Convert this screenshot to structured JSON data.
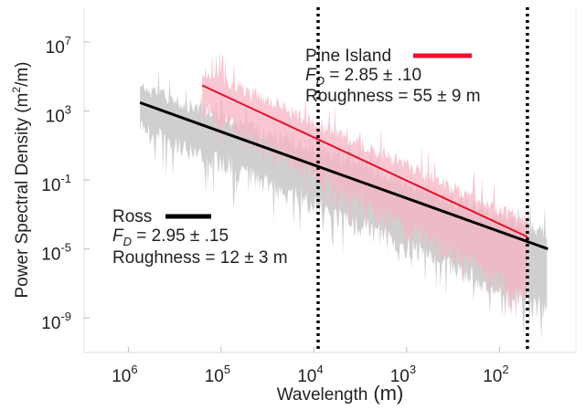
{
  "chart_data": {
    "type": "line",
    "xlabel_main": "Wavelength",
    "xlabel_unit": "(m)",
    "ylabel": "Power Spectral Density (m",
    "ylabel_sup": "2",
    "ylabel_tail": "/m)",
    "x_scale": "log",
    "x_reversed": true,
    "y_scale": "log",
    "xlim": [
      3000000,
      15
    ],
    "ylim": [
      1e-11,
      1000000000.0
    ],
    "x_ticks": [
      {
        "value": 1000000,
        "base": "10",
        "exp": "6"
      },
      {
        "value": 100000,
        "base": "10",
        "exp": "5"
      },
      {
        "value": 10000,
        "base": "10",
        "exp": "4"
      },
      {
        "value": 1000,
        "base": "10",
        "exp": "3"
      },
      {
        "value": 100,
        "base": "10",
        "exp": "2"
      }
    ],
    "y_ticks": [
      {
        "value": 10000000.0,
        "base": "10",
        "exp": "7"
      },
      {
        "value": 1000.0,
        "base": "10",
        "exp": "3"
      },
      {
        "value": 0.1,
        "base": "10",
        "exp": "-1"
      },
      {
        "value": 1e-05,
        "base": "10",
        "exp": "-5"
      },
      {
        "value": 1e-09,
        "base": "10",
        "exp": "-9"
      }
    ],
    "grid": false,
    "reference_lines": [
      {
        "x": 9000,
        "style": "dotted",
        "color": "#000000"
      },
      {
        "x": 50,
        "style": "dotted",
        "color": "#000000"
      }
    ],
    "series": [
      {
        "name": "Ross",
        "color": "#000000",
        "noise_color": "#cfcfcf",
        "fit": {
          "x": [
            750000,
            30
          ],
          "y": [
            3000,
            1e-05
          ]
        },
        "noise_x_range": [
          750000,
          30
        ],
        "FD": "2.95 ± .15",
        "roughness": "Roughness = 12 ± 3 m"
      },
      {
        "name": "Pine Island",
        "color": "#e8102c",
        "noise_color": "#f7b4c2",
        "fit": {
          "x": [
            160000,
            50
          ],
          "y": [
            30000,
            5e-05
          ]
        },
        "noise_x_range": [
          160000,
          50
        ],
        "FD": "2.85 ± .10",
        "roughness": "Roughness = 55 ±  9 m"
      }
    ]
  },
  "legend": {
    "pine": {
      "name": "Pine Island",
      "fd_prefix": "F",
      "fd_sub": "D",
      "fd_value": " = 2.85 ± .10",
      "roughness": "Roughness = 55 ±  9 m"
    },
    "ross": {
      "name": "Ross",
      "fd_prefix": "F",
      "fd_sub": "D",
      "fd_value": " = 2.95 ± .15",
      "roughness": "Roughness = 12 ± 3 m"
    }
  }
}
